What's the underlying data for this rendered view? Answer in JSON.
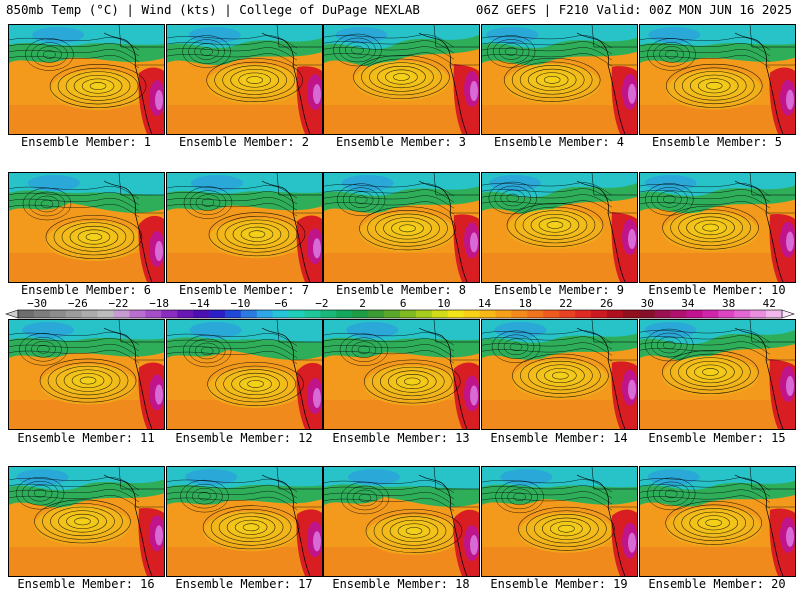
{
  "header": {
    "left": "850mb Temp (°C) | Wind (kts) | College of DuPage NEXLAB",
    "right": "06Z GEFS | F210 Valid: 00Z MON JUN 16 2025"
  },
  "members": [
    {
      "label": "Ensemble Member: 1"
    },
    {
      "label": "Ensemble Member: 2"
    },
    {
      "label": "Ensemble Member: 3"
    },
    {
      "label": "Ensemble Member: 4"
    },
    {
      "label": "Ensemble Member: 5"
    },
    {
      "label": "Ensemble Member: 6"
    },
    {
      "label": "Ensemble Member: 7"
    },
    {
      "label": "Ensemble Member: 8"
    },
    {
      "label": "Ensemble Member: 9"
    },
    {
      "label": "Ensemble Member: 10"
    },
    {
      "label": "Ensemble Member: 11"
    },
    {
      "label": "Ensemble Member: 12"
    },
    {
      "label": "Ensemble Member: 13"
    },
    {
      "label": "Ensemble Member: 14"
    },
    {
      "label": "Ensemble Member: 15"
    },
    {
      "label": "Ensemble Member: 16"
    },
    {
      "label": "Ensemble Member: 17"
    },
    {
      "label": "Ensemble Member: 18"
    },
    {
      "label": "Ensemble Member: 19"
    },
    {
      "label": "Ensemble Member: 20"
    }
  ],
  "colorbar": {
    "tick_labels": [
      "−30",
      "−26",
      "−22",
      "−18",
      "−14",
      "−10",
      "−6",
      "−2",
      "2",
      "6",
      "10",
      "14",
      "18",
      "22",
      "26",
      "30",
      "34",
      "38",
      "42"
    ],
    "colors": [
      "#6e6e6e",
      "#7d7d7d",
      "#8c8c8c",
      "#9c9c9c",
      "#acacac",
      "#bcbcbc",
      "#c79ad2",
      "#b86fcf",
      "#a64dc8",
      "#8a2cc0",
      "#6a16b4",
      "#4b0fb2",
      "#2c1fc8",
      "#1f48d6",
      "#2a7ae0",
      "#2fa6e6",
      "#26c4d8",
      "#1fd0b8",
      "#1ec89a",
      "#19b878",
      "#14a85c",
      "#1e9d44",
      "#3a9c32",
      "#5aa82a",
      "#7fba22",
      "#a6cc1e",
      "#d0dc1a",
      "#f2e41a",
      "#f8d018",
      "#f8b818",
      "#f7a01a",
      "#f58a1c",
      "#f2731e",
      "#ee5a20",
      "#e84222",
      "#de2a22",
      "#cc1a20",
      "#b0101e",
      "#92101c",
      "#86102a",
      "#9a1050",
      "#b0106e",
      "#c21290",
      "#d024aa",
      "#dc44c2",
      "#e466d4",
      "#ea8ee0",
      "#f0b8ec"
    ]
  }
}
